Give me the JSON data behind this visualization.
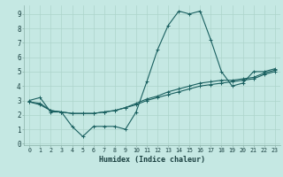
{
  "xlabel": "Humidex (Indice chaleur)",
  "bg_color": "#c5e8e3",
  "line_color": "#1a6060",
  "grid_color": "#aed4cc",
  "xlim": [
    -0.5,
    23.5
  ],
  "ylim": [
    -0.1,
    9.6
  ],
  "xticks": [
    0,
    1,
    2,
    3,
    4,
    5,
    6,
    7,
    8,
    9,
    10,
    11,
    12,
    13,
    14,
    15,
    16,
    17,
    18,
    19,
    20,
    21,
    22,
    23
  ],
  "yticks": [
    0,
    1,
    2,
    3,
    4,
    5,
    6,
    7,
    8,
    9
  ],
  "series1": [
    3.0,
    3.2,
    2.2,
    2.2,
    1.2,
    0.5,
    1.2,
    1.2,
    1.2,
    1.0,
    2.2,
    4.3,
    6.5,
    8.2,
    9.2,
    9.0,
    9.2,
    7.2,
    5.0,
    4.0,
    4.2,
    5.0,
    5.0,
    5.2
  ],
  "series2": [
    2.9,
    2.8,
    2.3,
    2.2,
    2.1,
    2.1,
    2.1,
    2.2,
    2.3,
    2.5,
    2.7,
    3.0,
    3.2,
    3.4,
    3.6,
    3.8,
    4.0,
    4.1,
    4.2,
    4.3,
    4.4,
    4.5,
    4.8,
    5.0
  ],
  "series3": [
    2.9,
    2.7,
    2.3,
    2.2,
    2.1,
    2.1,
    2.1,
    2.2,
    2.3,
    2.5,
    2.8,
    3.1,
    3.3,
    3.6,
    3.8,
    4.0,
    4.2,
    4.3,
    4.4,
    4.4,
    4.5,
    4.6,
    4.9,
    5.1
  ]
}
